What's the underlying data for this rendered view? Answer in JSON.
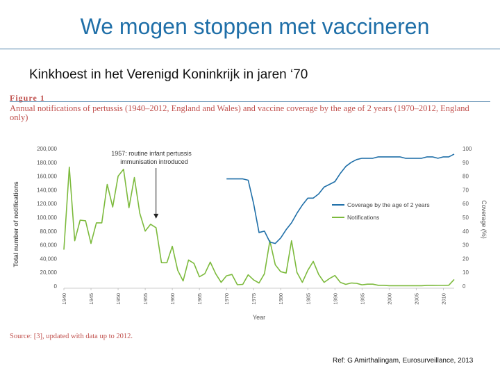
{
  "slide": {
    "title": "We mogen stoppen met vaccineren",
    "subtitle": "Kinkhoest in het Verenigd Koninkrijk in jaren ‘70",
    "figure_label": "Figure 1",
    "figure_caption": "Annual notifications of pertussis (1940–2012, England and Wales) and vaccine coverage by the age of 2 years (1970–2012, England only)",
    "source": "Source: [3], updated with data up to 2012.",
    "reference": "Ref: G Amirthalingam, Eurosurveillance, 2013"
  },
  "colors": {
    "title": "#1f6fa8",
    "caption": "#c0504d",
    "coverage_line": "#1f6fa8",
    "notifications_line": "#7cba3c",
    "axis_text": "#555555"
  },
  "chart_data": {
    "type": "line",
    "xlabel": "Year",
    "ylabel": "Total number of notifications",
    "y2label": "Coverage (%)",
    "xlim": [
      1940,
      2012
    ],
    "ylim": [
      0,
      200000
    ],
    "y2lim": [
      0,
      100
    ],
    "x_ticks": [
      "1940",
      "1945",
      "1950",
      "1955",
      "1960",
      "1965",
      "1970",
      "1975",
      "1980",
      "1985",
      "1990",
      "1995",
      "2000",
      "2005",
      "2010"
    ],
    "y_ticks": [
      "0",
      "20,000",
      "40,000",
      "60,000",
      "80,000",
      "100,000",
      "120,000",
      "140,000",
      "160,000",
      "180,000",
      "200,000"
    ],
    "y2_ticks": [
      "0",
      "10",
      "20",
      "30",
      "40",
      "50",
      "60",
      "70",
      "80",
      "90",
      "100"
    ],
    "annotation": {
      "lines": [
        "1957: routine infant pertussis",
        "immunisation introduced"
      ],
      "x": 1957,
      "y": 92000
    },
    "legend": {
      "position": "right",
      "entries": [
        "Coverage by the age of 2 years",
        "Notifications"
      ]
    },
    "series": [
      {
        "name": "Notifications",
        "axis": "left",
        "x": [
          1940,
          1941,
          1942,
          1943,
          1944,
          1945,
          1946,
          1947,
          1948,
          1949,
          1950,
          1951,
          1952,
          1953,
          1954,
          1955,
          1956,
          1957,
          1958,
          1959,
          1960,
          1961,
          1962,
          1963,
          1964,
          1965,
          1966,
          1967,
          1968,
          1969,
          1970,
          1971,
          1972,
          1973,
          1974,
          1975,
          1976,
          1977,
          1978,
          1979,
          1980,
          1981,
          1982,
          1983,
          1984,
          1985,
          1986,
          1987,
          1988,
          1989,
          1990,
          1991,
          1992,
          1993,
          1994,
          1995,
          1996,
          1997,
          1998,
          1999,
          2000,
          2001,
          2002,
          2003,
          2004,
          2005,
          2006,
          2007,
          2008,
          2009,
          2010,
          2011,
          2012
        ],
        "values": [
          53000,
          173000,
          66000,
          96000,
          95000,
          62000,
          92000,
          92000,
          148000,
          115000,
          160000,
          170000,
          114000,
          158000,
          106000,
          80000,
          90000,
          85000,
          34000,
          34000,
          58000,
          23000,
          7500,
          38000,
          33000,
          13500,
          18000,
          35000,
          18000,
          5500,
          15000,
          17000,
          2000,
          2500,
          16500,
          9000,
          4500,
          18000,
          66000,
          31000,
          21000,
          19000,
          66000,
          20000,
          5500,
          23000,
          36000,
          17000,
          5500,
          11000,
          15500,
          5500,
          2500,
          4500,
          4000,
          1800,
          2800,
          2800,
          1200,
          1200,
          600,
          600,
          600,
          600,
          600,
          600,
          600,
          1100,
          1100,
          1000,
          1000,
          1200,
          9700
        ]
      },
      {
        "name": "Coverage by the age of 2 years",
        "axis": "right",
        "x": [
          1970,
          1971,
          1972,
          1973,
          1974,
          1975,
          1976,
          1977,
          1978,
          1979,
          1980,
          1981,
          1982,
          1983,
          1984,
          1985,
          1986,
          1987,
          1988,
          1989,
          1990,
          1991,
          1992,
          1993,
          1994,
          1995,
          1996,
          1997,
          1998,
          1999,
          2000,
          2001,
          2002,
          2003,
          2004,
          2005,
          2006,
          2007,
          2008,
          2009,
          2010,
          2011,
          2012
        ],
        "values": [
          78,
          78,
          78,
          78,
          77,
          60,
          39,
          40,
          32,
          31,
          35,
          41,
          46,
          53,
          59,
          64,
          64,
          67,
          72,
          74,
          76,
          82,
          87,
          90,
          92,
          93,
          93,
          93,
          94,
          94,
          94,
          94,
          94,
          93,
          93,
          93,
          93,
          94,
          94,
          93,
          94,
          94,
          96
        ]
      }
    ]
  }
}
